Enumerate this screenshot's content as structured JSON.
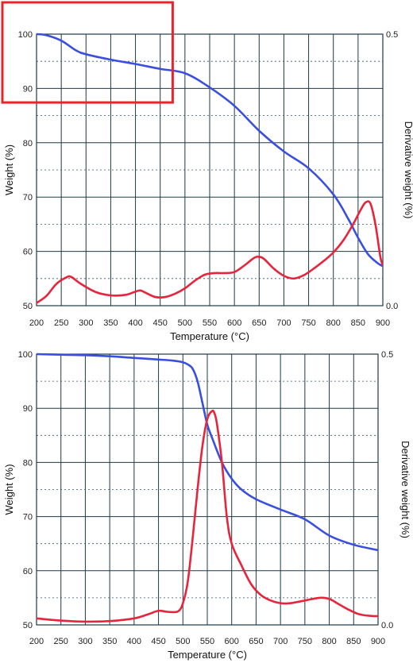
{
  "chart_data": [
    {
      "type": "line",
      "xlabel": "Temperature (°C)",
      "ylabel_left": "Weight (%)",
      "ylabel_right": "Derivative weight (%)",
      "xlim": [
        200,
        900
      ],
      "ylim_left": [
        50,
        100
      ],
      "ylim_right": [
        0.0,
        0.5
      ],
      "x_ticks": [
        200,
        250,
        300,
        350,
        400,
        450,
        500,
        550,
        600,
        650,
        700,
        750,
        800,
        850,
        900
      ],
      "y_ticks_left": [
        50,
        60,
        70,
        80,
        90,
        100
      ],
      "y_ticks_right": [
        "0.0",
        "0.5"
      ],
      "grid": true,
      "highlight_box": {
        "x_range": [
          200,
          480
        ],
        "y_range": [
          88,
          100
        ],
        "color": "#e8242c"
      },
      "series": [
        {
          "axis": "left",
          "color": "#3a4ee0",
          "x": [
            200,
            220,
            250,
            280,
            300,
            350,
            400,
            450,
            500,
            550,
            600,
            650,
            700,
            750,
            800,
            830,
            850,
            870,
            890,
            900
          ],
          "y": [
            100,
            99.8,
            98.8,
            97.0,
            96.3,
            95.3,
            94.5,
            93.6,
            92.8,
            90.2,
            86.8,
            82.2,
            78.4,
            75.3,
            70.5,
            66.0,
            62.5,
            59.5,
            57.8,
            57.3
          ]
        },
        {
          "axis": "right",
          "color": "#e8243c",
          "x": [
            200,
            220,
            240,
            260,
            270,
            290,
            320,
            350,
            380,
            400,
            410,
            420,
            440,
            460,
            480,
            500,
            520,
            540,
            560,
            580,
            600,
            620,
            640,
            650,
            660,
            680,
            700,
            720,
            740,
            760,
            780,
            800,
            820,
            840,
            855,
            865,
            875,
            885,
            895,
            900
          ],
          "y": [
            0.005,
            0.018,
            0.04,
            0.052,
            0.053,
            0.04,
            0.025,
            0.019,
            0.02,
            0.026,
            0.028,
            0.024,
            0.016,
            0.016,
            0.022,
            0.032,
            0.046,
            0.057,
            0.06,
            0.06,
            0.062,
            0.074,
            0.088,
            0.09,
            0.086,
            0.068,
            0.055,
            0.05,
            0.056,
            0.068,
            0.082,
            0.098,
            0.12,
            0.15,
            0.176,
            0.19,
            0.188,
            0.15,
            0.09,
            0.075
          ]
        }
      ]
    },
    {
      "type": "line",
      "xlabel": "Temperature (°C)",
      "ylabel_left": "Weight (%)",
      "ylabel_right": "Derivative weight (%)",
      "xlim": [
        200,
        900
      ],
      "ylim_left": [
        50,
        100
      ],
      "ylim_right": [
        0.0,
        0.5
      ],
      "x_ticks": [
        200,
        250,
        300,
        350,
        400,
        450,
        500,
        550,
        600,
        650,
        700,
        750,
        800,
        850,
        900
      ],
      "y_ticks_left": [
        50,
        60,
        70,
        80,
        90,
        100
      ],
      "y_ticks_right": [
        "0.0",
        "0.5"
      ],
      "grid": true,
      "series": [
        {
          "axis": "left",
          "color": "#3a4ee0",
          "x": [
            200,
            250,
            300,
            350,
            400,
            450,
            480,
            500,
            510,
            520,
            530,
            540,
            550,
            560,
            580,
            600,
            620,
            650,
            700,
            750,
            800,
            850,
            900
          ],
          "y": [
            100,
            99.9,
            99.8,
            99.6,
            99.3,
            99.0,
            98.8,
            98.5,
            98.1,
            97.3,
            95.0,
            91.0,
            87.0,
            84.5,
            80.0,
            77.0,
            75.0,
            73.2,
            71.3,
            69.5,
            66.5,
            64.8,
            63.8
          ]
        },
        {
          "axis": "right",
          "color": "#e8243c",
          "x": [
            200,
            250,
            300,
            350,
            400,
            430,
            450,
            470,
            490,
            500,
            510,
            520,
            530,
            540,
            550,
            560,
            565,
            570,
            580,
            590,
            600,
            620,
            640,
            660,
            680,
            700,
            720,
            750,
            780,
            800,
            820,
            840,
            860,
            880,
            900
          ],
          "y": [
            0.012,
            0.008,
            0.006,
            0.007,
            0.012,
            0.02,
            0.026,
            0.024,
            0.025,
            0.04,
            0.08,
            0.16,
            0.25,
            0.33,
            0.38,
            0.395,
            0.39,
            0.37,
            0.3,
            0.2,
            0.15,
            0.11,
            0.075,
            0.055,
            0.045,
            0.04,
            0.04,
            0.045,
            0.05,
            0.048,
            0.038,
            0.028,
            0.02,
            0.017,
            0.016
          ]
        }
      ]
    }
  ]
}
